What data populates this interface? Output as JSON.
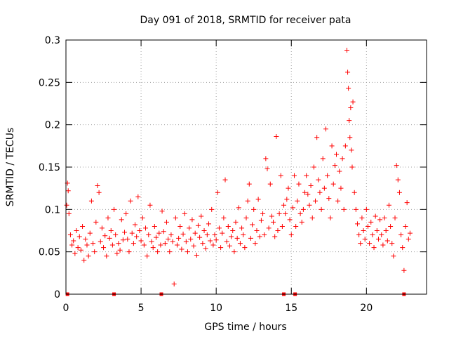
{
  "chart_data": {
    "type": "scatter",
    "title": "Day 091 of 2018, SRMTID for receiver pata",
    "xlabel": "GPS time / hours",
    "ylabel": "SRMTID / TECUs",
    "xlim": [
      0,
      24
    ],
    "ylim": [
      0,
      0.3
    ],
    "x_ticks": [
      0,
      5,
      10,
      15,
      20
    ],
    "x_tick_labels": [
      "0",
      "5",
      "10",
      "15",
      "20"
    ],
    "y_ticks": [
      0,
      0.05,
      0.1,
      0.15,
      0.2,
      0.25,
      0.3
    ],
    "y_tick_labels": [
      "0",
      "0.05",
      "0.1",
      "0.15",
      "0.2",
      "0.25",
      "0.3"
    ],
    "grid": true,
    "marker": "plus",
    "color": "#ff0000",
    "series": [
      {
        "name": "SRMTID",
        "points": [
          [
            0.05,
            0.105
          ],
          [
            0.1,
            0.131
          ],
          [
            0.15,
            0.122
          ],
          [
            0.2,
            0.095
          ],
          [
            0.3,
            0.07
          ],
          [
            0.4,
            0.058
          ],
          [
            0.5,
            0.063
          ],
          [
            0.6,
            0.048
          ],
          [
            0.7,
            0.075
          ],
          [
            0.8,
            0.055
          ],
          [
            0.9,
            0.068
          ],
          [
            1.0,
            0.052
          ],
          [
            1.1,
            0.08
          ],
          [
            1.2,
            0.04
          ],
          [
            1.3,
            0.065
          ],
          [
            1.4,
            0.058
          ],
          [
            1.5,
            0.045
          ],
          [
            1.6,
            0.072
          ],
          [
            1.7,
            0.11
          ],
          [
            1.8,
            0.06
          ],
          [
            1.9,
            0.05
          ],
          [
            2.0,
            0.085
          ],
          [
            2.1,
            0.128
          ],
          [
            2.2,
            0.12
          ],
          [
            2.3,
            0.062
          ],
          [
            2.4,
            0.078
          ],
          [
            2.5,
            0.055
          ],
          [
            2.6,
            0.069
          ],
          [
            2.7,
            0.045
          ],
          [
            2.8,
            0.09
          ],
          [
            2.9,
            0.066
          ],
          [
            3.0,
            0.075
          ],
          [
            3.1,
            0.058
          ],
          [
            3.2,
            0.1
          ],
          [
            3.3,
            0.07
          ],
          [
            3.4,
            0.048
          ],
          [
            3.5,
            0.06
          ],
          [
            3.6,
            0.052
          ],
          [
            3.7,
            0.088
          ],
          [
            3.8,
            0.064
          ],
          [
            3.9,
            0.073
          ],
          [
            4.0,
            0.095
          ],
          [
            4.1,
            0.065
          ],
          [
            4.2,
            0.05
          ],
          [
            4.3,
            0.11
          ],
          [
            4.4,
            0.072
          ],
          [
            4.5,
            0.06
          ],
          [
            4.6,
            0.082
          ],
          [
            4.7,
            0.068
          ],
          [
            4.8,
            0.115
          ],
          [
            4.9,
            0.075
          ],
          [
            5.0,
            0.063
          ],
          [
            5.1,
            0.09
          ],
          [
            5.2,
            0.058
          ],
          [
            5.3,
            0.078
          ],
          [
            5.4,
            0.045
          ],
          [
            5.5,
            0.07
          ],
          [
            5.6,
            0.105
          ],
          [
            5.7,
            0.062
          ],
          [
            5.8,
            0.055
          ],
          [
            5.9,
            0.08
          ],
          [
            6.0,
            0.067
          ],
          [
            6.1,
            0.05
          ],
          [
            6.2,
            0.072
          ],
          [
            6.3,
            0.058
          ],
          [
            6.4,
            0.098
          ],
          [
            6.5,
            0.074
          ],
          [
            6.6,
            0.06
          ],
          [
            6.7,
            0.085
          ],
          [
            6.8,
            0.065
          ],
          [
            6.9,
            0.05
          ],
          [
            7.0,
            0.07
          ],
          [
            7.1,
            0.062
          ],
          [
            7.2,
            0.012
          ],
          [
            7.3,
            0.09
          ],
          [
            7.4,
            0.058
          ],
          [
            7.5,
            0.066
          ],
          [
            7.6,
            0.08
          ],
          [
            7.7,
            0.053
          ],
          [
            7.8,
            0.071
          ],
          [
            7.9,
            0.095
          ],
          [
            8.0,
            0.062
          ],
          [
            8.1,
            0.05
          ],
          [
            8.2,
            0.078
          ],
          [
            8.3,
            0.065
          ],
          [
            8.4,
            0.088
          ],
          [
            8.5,
            0.057
          ],
          [
            8.6,
            0.072
          ],
          [
            8.7,
            0.046
          ],
          [
            8.8,
            0.081
          ],
          [
            8.9,
            0.067
          ],
          [
            9.0,
            0.092
          ],
          [
            9.1,
            0.06
          ],
          [
            9.2,
            0.075
          ],
          [
            9.3,
            0.054
          ],
          [
            9.4,
            0.07
          ],
          [
            9.5,
            0.083
          ],
          [
            9.6,
            0.063
          ],
          [
            9.7,
            0.1
          ],
          [
            9.8,
            0.058
          ],
          [
            9.9,
            0.07
          ],
          [
            10.0,
            0.064
          ],
          [
            10.1,
            0.12
          ],
          [
            10.2,
            0.078
          ],
          [
            10.3,
            0.055
          ],
          [
            10.4,
            0.072
          ],
          [
            10.5,
            0.09
          ],
          [
            10.6,
            0.135
          ],
          [
            10.7,
            0.062
          ],
          [
            10.8,
            0.08
          ],
          [
            10.9,
            0.057
          ],
          [
            11.0,
            0.068
          ],
          [
            11.1,
            0.075
          ],
          [
            11.2,
            0.05
          ],
          [
            11.3,
            0.085
          ],
          [
            11.4,
            0.066
          ],
          [
            11.5,
            0.102
          ],
          [
            11.6,
            0.06
          ],
          [
            11.7,
            0.078
          ],
          [
            11.8,
            0.07
          ],
          [
            11.9,
            0.055
          ],
          [
            12.0,
            0.09
          ],
          [
            12.1,
            0.11
          ],
          [
            12.2,
            0.13
          ],
          [
            12.3,
            0.066
          ],
          [
            12.4,
            0.082
          ],
          [
            12.5,
            0.1
          ],
          [
            12.6,
            0.06
          ],
          [
            12.7,
            0.075
          ],
          [
            12.8,
            0.112
          ],
          [
            12.9,
            0.068
          ],
          [
            13.0,
            0.087
          ],
          [
            13.1,
            0.095
          ],
          [
            13.2,
            0.07
          ],
          [
            13.3,
            0.16
          ],
          [
            13.4,
            0.148
          ],
          [
            13.5,
            0.078
          ],
          [
            13.6,
            0.13
          ],
          [
            13.7,
            0.092
          ],
          [
            13.8,
            0.085
          ],
          [
            13.9,
            0.068
          ],
          [
            14.0,
            0.186
          ],
          [
            14.1,
            0.075
          ],
          [
            14.2,
            0.095
          ],
          [
            14.3,
            0.14
          ],
          [
            14.4,
            0.08
          ],
          [
            14.5,
            0.105
          ],
          [
            14.6,
            0.095
          ],
          [
            14.7,
            0.112
          ],
          [
            14.8,
            0.125
          ],
          [
            14.9,
            0.088
          ],
          [
            15.0,
            0.07
          ],
          [
            15.1,
            0.102
          ],
          [
            15.2,
            0.14
          ],
          [
            15.3,
            0.08
          ],
          [
            15.4,
            0.11
          ],
          [
            15.5,
            0.13
          ],
          [
            15.6,
            0.095
          ],
          [
            15.7,
            0.085
          ],
          [
            15.8,
            0.1
          ],
          [
            15.9,
            0.12
          ],
          [
            16.0,
            0.14
          ],
          [
            16.1,
            0.118
          ],
          [
            16.2,
            0.105
          ],
          [
            16.3,
            0.128
          ],
          [
            16.4,
            0.09
          ],
          [
            16.5,
            0.15
          ],
          [
            16.6,
            0.11
          ],
          [
            16.7,
            0.185
          ],
          [
            16.8,
            0.135
          ],
          [
            16.9,
            0.12
          ],
          [
            17.0,
            0.1
          ],
          [
            17.1,
            0.16
          ],
          [
            17.2,
            0.125
          ],
          [
            17.3,
            0.195
          ],
          [
            17.4,
            0.14
          ],
          [
            17.5,
            0.113
          ],
          [
            17.6,
            0.09
          ],
          [
            17.7,
            0.175
          ],
          [
            17.8,
            0.13
          ],
          [
            17.9,
            0.152
          ],
          [
            18.0,
            0.165
          ],
          [
            18.1,
            0.11
          ],
          [
            18.2,
            0.145
          ],
          [
            18.3,
            0.125
          ],
          [
            18.4,
            0.16
          ],
          [
            18.5,
            0.1
          ],
          [
            18.6,
            0.175
          ],
          [
            18.7,
            0.288
          ],
          [
            18.75,
            0.262
          ],
          [
            18.8,
            0.243
          ],
          [
            18.85,
            0.205
          ],
          [
            18.9,
            0.185
          ],
          [
            18.95,
            0.22
          ],
          [
            19.0,
            0.17
          ],
          [
            19.05,
            0.15
          ],
          [
            19.1,
            0.227
          ],
          [
            19.2,
            0.12
          ],
          [
            19.3,
            0.1
          ],
          [
            19.4,
            0.083
          ],
          [
            19.5,
            0.07
          ],
          [
            19.6,
            0.06
          ],
          [
            19.7,
            0.09
          ],
          [
            19.8,
            0.075
          ],
          [
            19.9,
            0.065
          ],
          [
            20.0,
            0.1
          ],
          [
            20.1,
            0.08
          ],
          [
            20.2,
            0.06
          ],
          [
            20.3,
            0.085
          ],
          [
            20.4,
            0.07
          ],
          [
            20.5,
            0.055
          ],
          [
            20.6,
            0.092
          ],
          [
            20.7,
            0.075
          ],
          [
            20.8,
            0.065
          ],
          [
            20.9,
            0.088
          ],
          [
            21.0,
            0.07
          ],
          [
            21.1,
            0.058
          ],
          [
            21.2,
            0.09
          ],
          [
            21.3,
            0.075
          ],
          [
            21.4,
            0.063
          ],
          [
            21.5,
            0.105
          ],
          [
            21.6,
            0.08
          ],
          [
            21.7,
            0.06
          ],
          [
            21.8,
            0.045
          ],
          [
            21.9,
            0.09
          ],
          [
            22.0,
            0.152
          ],
          [
            22.1,
            0.135
          ],
          [
            22.2,
            0.12
          ],
          [
            22.3,
            0.07
          ],
          [
            22.4,
            0.055
          ],
          [
            22.5,
            0.028
          ],
          [
            22.6,
            0.08
          ],
          [
            22.7,
            0.108
          ],
          [
            22.8,
            0.065
          ],
          [
            22.9,
            0.072
          ]
        ]
      }
    ],
    "gap_markers_x": [
      0.1,
      3.2,
      6.35,
      14.5,
      15.25,
      22.5
    ]
  }
}
